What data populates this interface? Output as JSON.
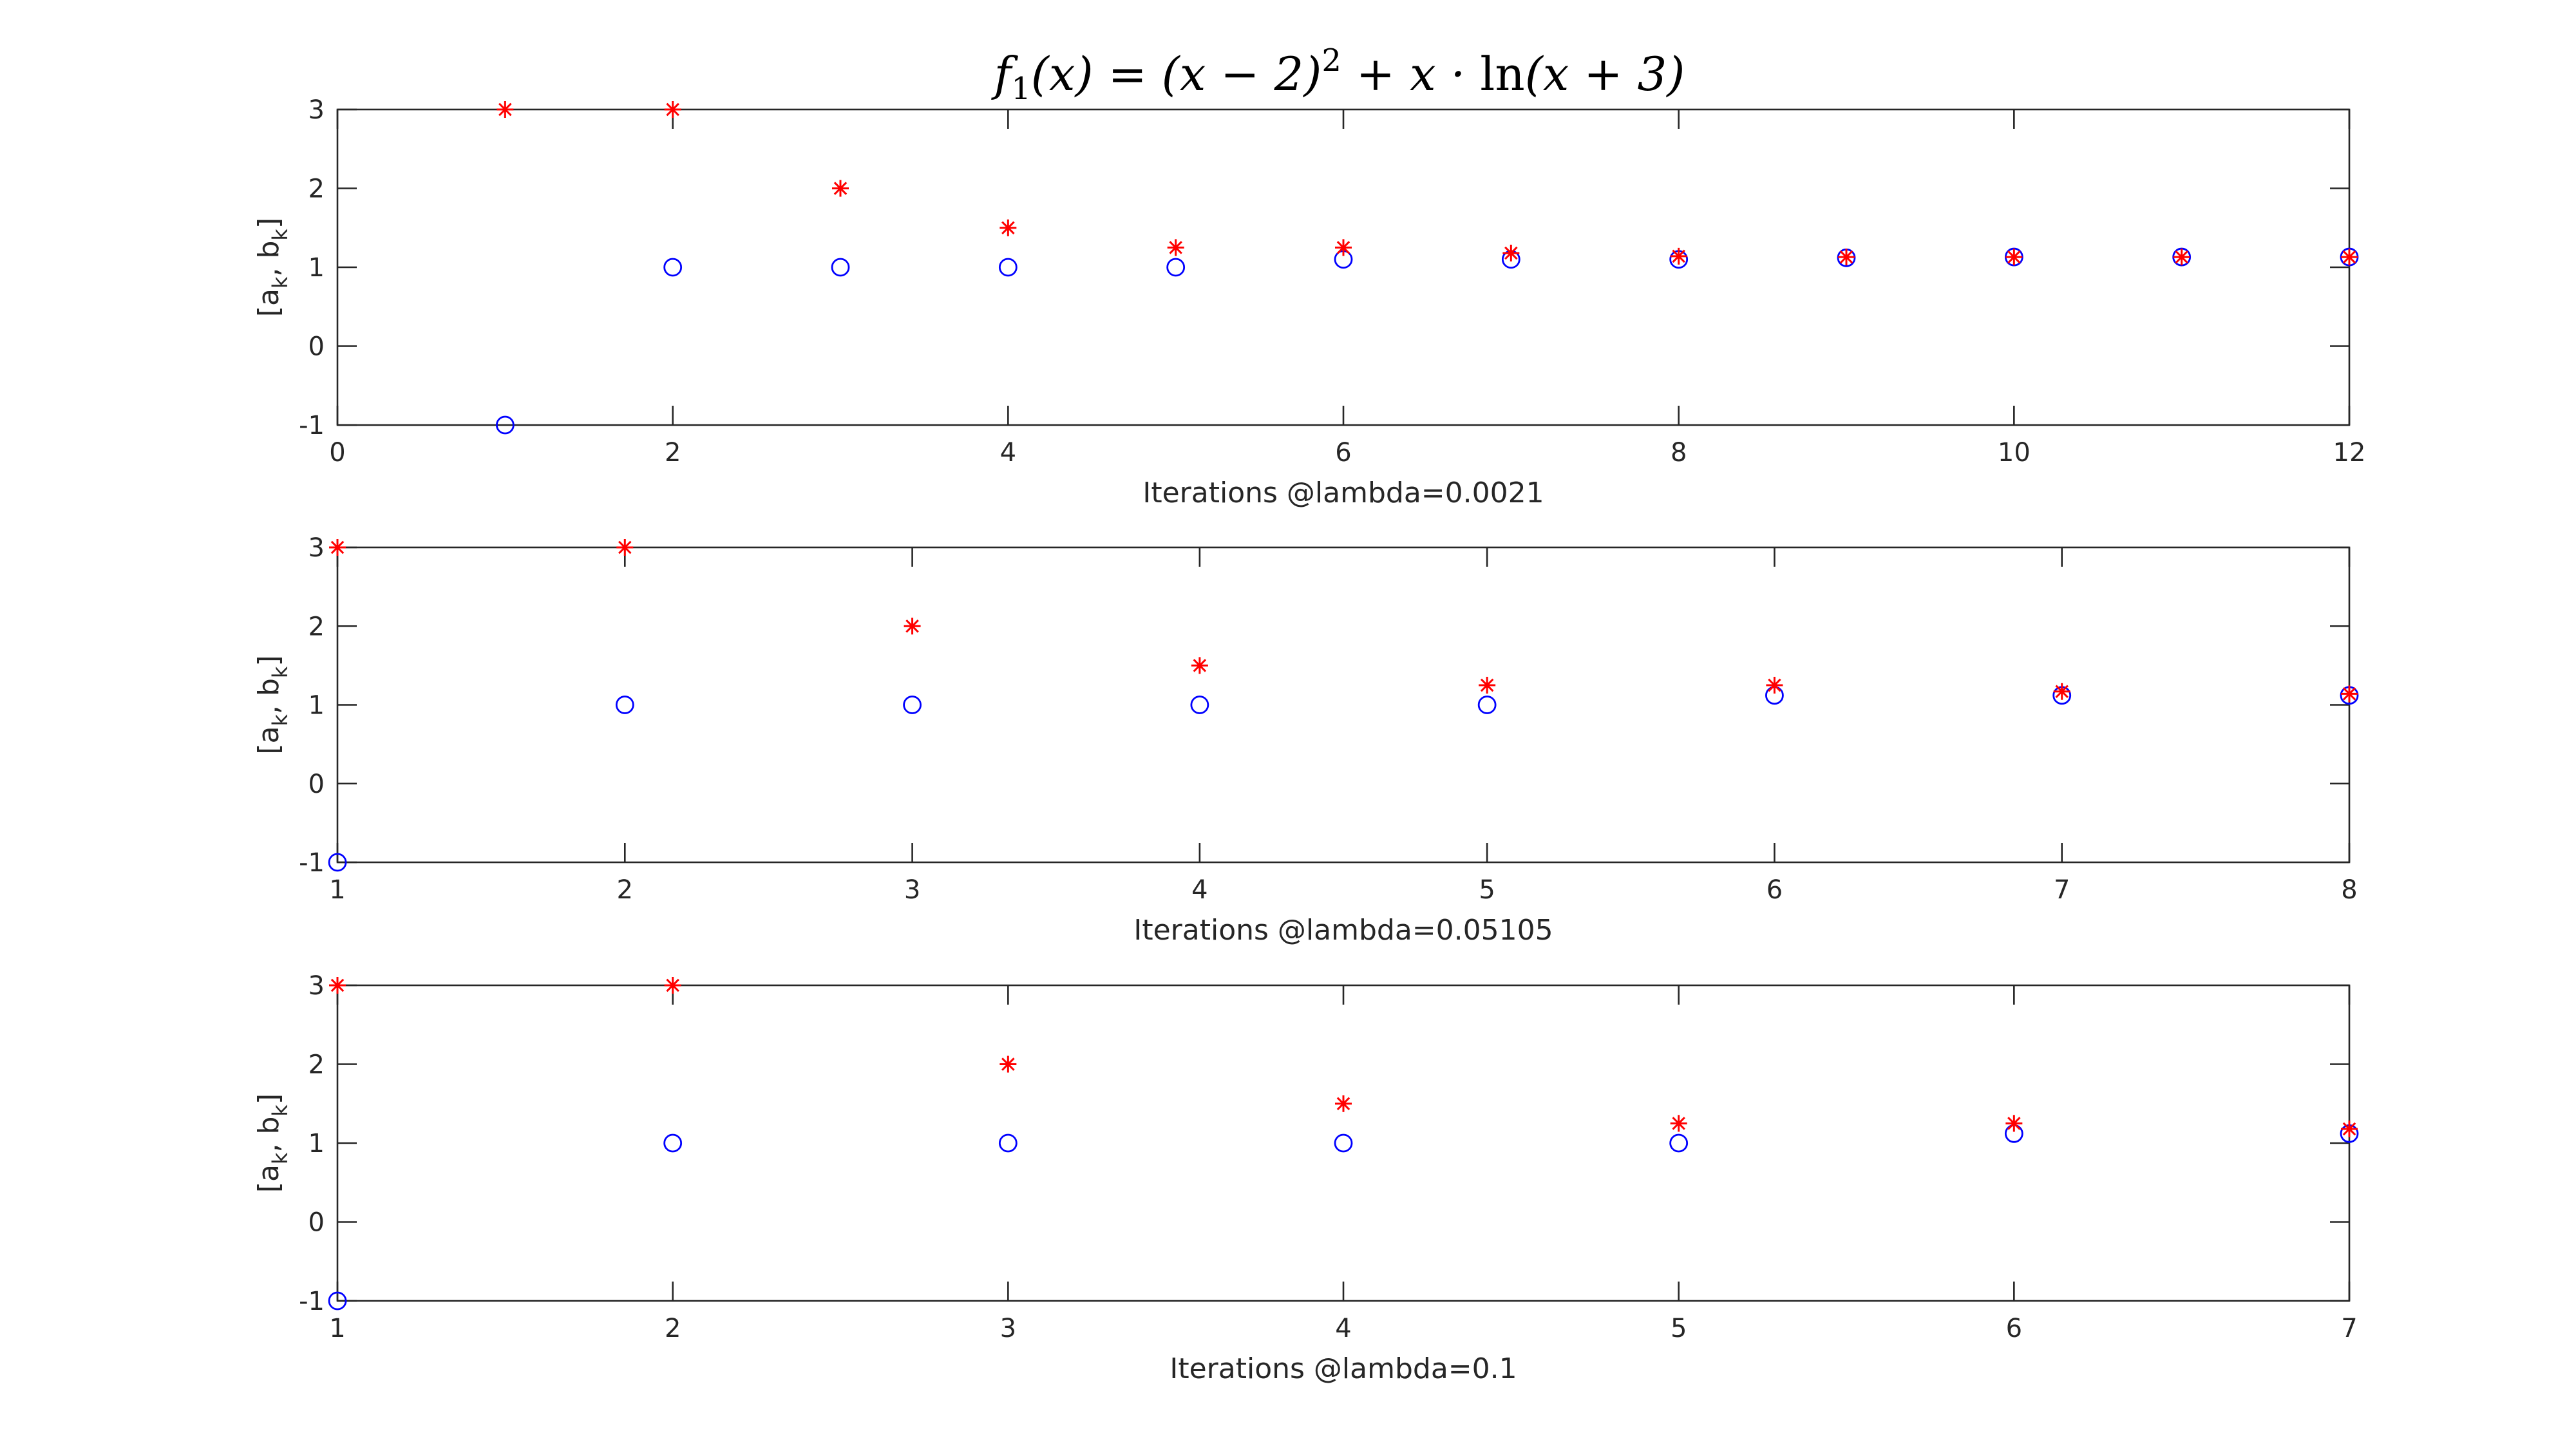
{
  "figure": {
    "title_parts": {
      "f": "f",
      "sub": "1",
      "lhs_arg": "(x) = (x − 2)",
      "sup": "2",
      "rhs": " + x · ",
      "ln": "ln",
      "rhs_arg": "(x + 3)"
    }
  },
  "colors": {
    "series_a": "#0000ff",
    "series_b": "#ff0000"
  },
  "chart_data": [
    {
      "type": "scatter",
      "xlabel": "Iterations @lambda=0.0021",
      "ylabel_parts": {
        "open": "[a",
        "sub1": "k",
        "mid": ", b",
        "sub2": "k",
        "close": "]"
      },
      "xlim": [
        0,
        12
      ],
      "ylim": [
        -1,
        3
      ],
      "xticks": [
        0,
        2,
        4,
        6,
        8,
        10,
        12
      ],
      "yticks": [
        -1,
        0,
        1,
        2,
        3
      ],
      "grid": false,
      "series": [
        {
          "marker": "circle",
          "color": "#0000ff",
          "x": [
            1,
            2,
            3,
            4,
            5,
            6,
            7,
            8,
            9,
            10,
            11,
            12
          ],
          "y": [
            -1,
            1,
            1,
            1,
            1,
            1.1,
            1.1,
            1.1,
            1.12,
            1.13,
            1.13,
            1.13
          ]
        },
        {
          "marker": "asterisk",
          "color": "#ff0000",
          "x": [
            1,
            2,
            3,
            4,
            5,
            6,
            7,
            8,
            9,
            10,
            11,
            12
          ],
          "y": [
            3,
            3,
            2,
            1.5,
            1.25,
            1.25,
            1.18,
            1.14,
            1.13,
            1.13,
            1.13,
            1.13
          ]
        }
      ]
    },
    {
      "type": "scatter",
      "xlabel": "Iterations @lambda=0.05105",
      "ylabel_parts": {
        "open": "[a",
        "sub1": "k",
        "mid": ", b",
        "sub2": "k",
        "close": "]"
      },
      "xlim": [
        1,
        8
      ],
      "ylim": [
        -1,
        3
      ],
      "xticks": [
        1,
        2,
        3,
        4,
        5,
        6,
        7,
        8
      ],
      "yticks": [
        -1,
        0,
        1,
        2,
        3
      ],
      "grid": false,
      "series": [
        {
          "marker": "circle",
          "color": "#0000ff",
          "x": [
            1,
            2,
            3,
            4,
            5,
            6,
            7,
            8
          ],
          "y": [
            -1,
            1,
            1,
            1,
            1,
            1.12,
            1.12,
            1.12
          ]
        },
        {
          "marker": "asterisk",
          "color": "#ff0000",
          "x": [
            1,
            2,
            3,
            4,
            5,
            6,
            7,
            8
          ],
          "y": [
            3,
            3,
            2,
            1.5,
            1.25,
            1.25,
            1.17,
            1.14
          ]
        }
      ]
    },
    {
      "type": "scatter",
      "xlabel": "Iterations @lambda=0.1",
      "ylabel_parts": {
        "open": "[a",
        "sub1": "k",
        "mid": ", b",
        "sub2": "k",
        "close": "]"
      },
      "xlim": [
        1,
        7
      ],
      "ylim": [
        -1,
        3
      ],
      "xticks": [
        1,
        2,
        3,
        4,
        5,
        6,
        7
      ],
      "yticks": [
        -1,
        0,
        1,
        2,
        3
      ],
      "grid": false,
      "series": [
        {
          "marker": "circle",
          "color": "#0000ff",
          "x": [
            1,
            2,
            3,
            4,
            5,
            6,
            7
          ],
          "y": [
            -1,
            1,
            1,
            1,
            1,
            1.12,
            1.12
          ]
        },
        {
          "marker": "asterisk",
          "color": "#ff0000",
          "x": [
            1,
            2,
            3,
            4,
            5,
            6,
            7
          ],
          "y": [
            3,
            3,
            2,
            1.5,
            1.25,
            1.25,
            1.18
          ]
        }
      ]
    }
  ]
}
